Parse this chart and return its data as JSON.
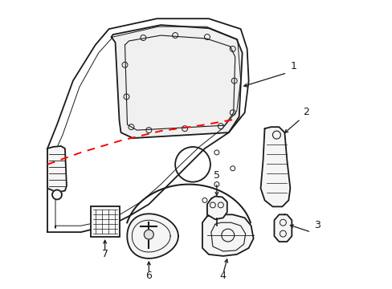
{
  "background_color": "#ffffff",
  "line_color": "#1a1a1a",
  "dashed_color": "#ff0000",
  "figsize": [
    4.89,
    3.6
  ],
  "dpi": 100
}
